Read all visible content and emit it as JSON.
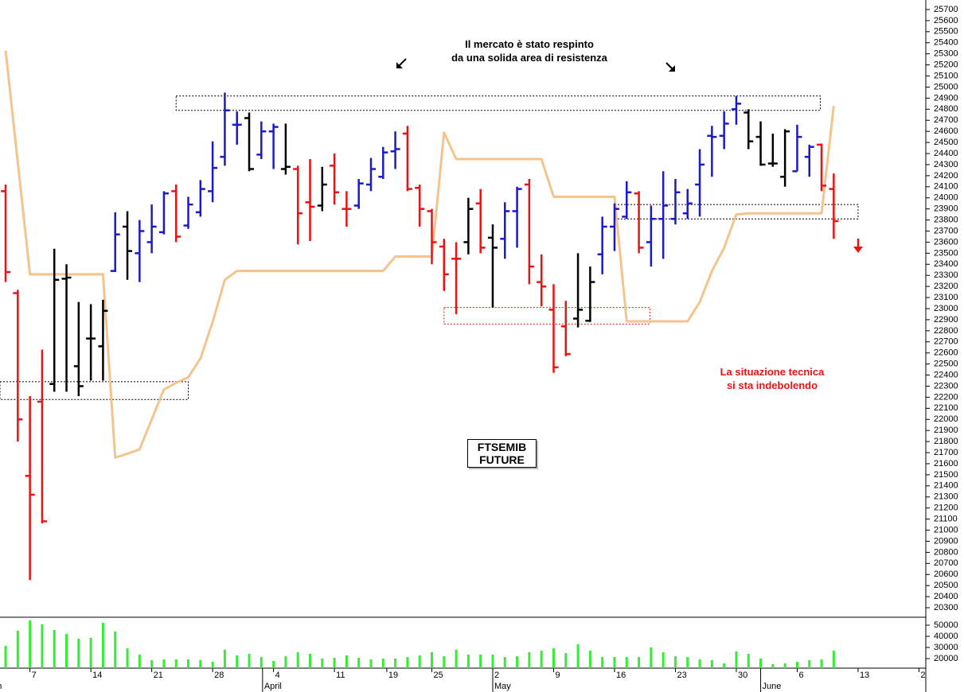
{
  "chart_data": {
    "type": "ohlc",
    "label_box": [
      "FTSEMIB",
      "FUTURE"
    ],
    "annotations": [
      {
        "lines": [
          "Il mercato è stato respinto",
          "da una solida area di resistenza"
        ],
        "color": "#000000"
      },
      {
        "lines": [
          "La situazione tecnica",
          "si sta indebolendo"
        ],
        "color": "#ee1111"
      }
    ],
    "xlim": [
      -0.46,
      75.56
    ],
    "ylim": [
      20214,
      25786
    ],
    "yticks": [
      20300,
      20400,
      20500,
      20600,
      20700,
      20800,
      20900,
      21000,
      21100,
      21200,
      21300,
      21400,
      21500,
      21600,
      21700,
      21800,
      21900,
      22000,
      22100,
      22200,
      22300,
      22400,
      22500,
      22600,
      22700,
      22800,
      22900,
      23000,
      23100,
      23200,
      23300,
      23400,
      23500,
      23600,
      23700,
      23800,
      23900,
      24000,
      24100,
      24200,
      24300,
      24400,
      24500,
      24600,
      24700,
      24800,
      24900,
      25000,
      25100,
      25200,
      25300,
      25400,
      25500,
      25600,
      25700
    ],
    "xticks": [
      {
        "value": 2,
        "label": "7"
      },
      {
        "value": 7,
        "label": "14"
      },
      {
        "value": 12,
        "label": "21"
      },
      {
        "value": 17,
        "label": "28"
      },
      {
        "value": 22,
        "label": "4"
      },
      {
        "value": 27,
        "label": "11"
      },
      {
        "value": 31.3,
        "label": "19"
      },
      {
        "value": 35,
        "label": "25"
      },
      {
        "value": 40,
        "label": "2"
      },
      {
        "value": 45,
        "label": "9"
      },
      {
        "value": 50,
        "label": "16"
      },
      {
        "value": 55,
        "label": "23"
      },
      {
        "value": 60,
        "label": "30"
      },
      {
        "value": 65,
        "label": "6"
      },
      {
        "value": 70,
        "label": "13"
      },
      {
        "value": 75,
        "label": "2"
      }
    ],
    "month_ticks": [
      {
        "value": -1.2,
        "label": "ch"
      },
      {
        "value": 21.1,
        "label": "April"
      },
      {
        "value": 40,
        "label": "May"
      },
      {
        "value": 62,
        "label": "June"
      }
    ],
    "ohlc": [
      [
        24060,
        24120,
        23240,
        23330
      ],
      [
        23140,
        23170,
        21800,
        22000
      ],
      [
        21490,
        22210,
        20550,
        21320
      ],
      [
        22160,
        22630,
        21060,
        21080
      ],
      [
        22320,
        23540,
        22250,
        23260
      ],
      [
        23270,
        23400,
        22250,
        23280
      ],
      [
        22480,
        23060,
        22210,
        22300
      ],
      [
        22730,
        23040,
        22350,
        22730
      ],
      [
        22660,
        23080,
        22350,
        22980
      ],
      [
        23340,
        23870,
        23330,
        23670
      ],
      [
        23740,
        23880,
        23260,
        23520
      ],
      [
        23500,
        23800,
        23240,
        23700
      ],
      [
        23600,
        23940,
        23500,
        23740
      ],
      [
        23690,
        24060,
        23670,
        24040
      ],
      [
        24060,
        24120,
        23600,
        23650
      ],
      [
        23750,
        24010,
        23720,
        23940
      ],
      [
        23870,
        24160,
        23830,
        24080
      ],
      [
        24060,
        24510,
        23960,
        24270
      ],
      [
        24370,
        24950,
        24290,
        24790
      ],
      [
        24660,
        24780,
        24480,
        24660
      ],
      [
        24720,
        24770,
        24240,
        24260
      ],
      [
        24390,
        24690,
        24350,
        24600
      ],
      [
        24600,
        24670,
        24260,
        24640
      ],
      [
        24260,
        24670,
        24210,
        24280
      ],
      [
        24260,
        24290,
        23580,
        23860
      ],
      [
        23960,
        24350,
        23610,
        23920
      ],
      [
        23930,
        24280,
        23880,
        24120
      ],
      [
        24290,
        24400,
        23940,
        24050
      ],
      [
        23900,
        24060,
        23740,
        23900
      ],
      [
        23930,
        24170,
        23900,
        24130
      ],
      [
        24120,
        24360,
        24060,
        24260
      ],
      [
        24190,
        24460,
        24170,
        24410
      ],
      [
        24420,
        24600,
        24260,
        24440
      ],
      [
        24580,
        24650,
        24060,
        24080
      ],
      [
        24090,
        24120,
        23740,
        23900
      ],
      [
        23880,
        23900,
        23400,
        23600
      ],
      [
        23560,
        23630,
        23160,
        23310
      ],
      [
        23450,
        23600,
        22950,
        23450
      ],
      [
        23600,
        24000,
        23490,
        23900
      ],
      [
        23950,
        24080,
        23500,
        23550
      ],
      [
        23640,
        23760,
        23010,
        23550
      ],
      [
        23630,
        23960,
        23450,
        23880
      ],
      [
        23880,
        24100,
        23550,
        24080
      ],
      [
        24120,
        24170,
        23220,
        23380
      ],
      [
        23240,
        23490,
        23020,
        23200
      ],
      [
        22990,
        23220,
        22420,
        22470
      ],
      [
        22840,
        23070,
        22570,
        22590
      ],
      [
        22910,
        23500,
        22830,
        22990
      ],
      [
        22890,
        23380,
        22880,
        23240
      ],
      [
        23490,
        23830,
        23310,
        23740
      ],
      [
        23740,
        23950,
        23520,
        23900
      ],
      [
        23830,
        24150,
        23810,
        24050
      ],
      [
        24040,
        24060,
        23500,
        23550
      ],
      [
        23600,
        23930,
        23380,
        23810
      ],
      [
        23810,
        24240,
        23450,
        23930
      ],
      [
        23810,
        24170,
        23760,
        24050
      ],
      [
        23860,
        24080,
        23810,
        23950
      ],
      [
        24120,
        24440,
        23830,
        24300
      ],
      [
        24560,
        24650,
        24190,
        24550
      ],
      [
        24560,
        24780,
        24440,
        24670
      ],
      [
        24800,
        24920,
        24660,
        24850
      ],
      [
        24770,
        24800,
        24440,
        24510
      ],
      [
        24550,
        24690,
        24290,
        24300
      ],
      [
        24310,
        24580,
        24280,
        24310
      ],
      [
        24190,
        24620,
        24100,
        24600
      ],
      [
        24240,
        24660,
        24240,
        24550
      ],
      [
        24370,
        24480,
        24190,
        24460
      ],
      [
        24480,
        24490,
        24060,
        24110
      ],
      [
        24080,
        24220,
        23630,
        23790
      ]
    ],
    "colors": [
      "#ee1111",
      "#ee1111",
      "#ee1111",
      "#ee1111",
      "#000000",
      "#000000",
      "#000000",
      "#000000",
      "#000000",
      "#1a1acc",
      "#000000",
      "#1a1acc",
      "#1a1acc",
      "#1a1acc",
      "#ee1111",
      "#1a1acc",
      "#1a1acc",
      "#1a1acc",
      "#1a1acc",
      "#1a1acc",
      "#000000",
      "#1a1acc",
      "#1a1acc",
      "#000000",
      "#ee1111",
      "#ee1111",
      "#000000",
      "#ee1111",
      "#ee1111",
      "#1a1acc",
      "#1a1acc",
      "#1a1acc",
      "#1a1acc",
      "#ee1111",
      "#ee1111",
      "#ee1111",
      "#ee1111",
      "#ee1111",
      "#000000",
      "#ee1111",
      "#000000",
      "#1a1acc",
      "#1a1acc",
      "#ee1111",
      "#ee1111",
      "#ee1111",
      "#ee1111",
      "#000000",
      "#000000",
      "#1a1acc",
      "#1a1acc",
      "#1a1acc",
      "#ee1111",
      "#1a1acc",
      "#1a1acc",
      "#1a1acc",
      "#1a1acc",
      "#1a1acc",
      "#1a1acc",
      "#1a1acc",
      "#1a1acc",
      "#000000",
      "#000000",
      "#000000",
      "#000000",
      "#1a1acc",
      "#1a1acc",
      "#ee1111",
      "#ee1111"
    ],
    "line": {
      "color": "#f5c48e",
      "values": [
        25330,
        24320,
        23310,
        23310,
        23310,
        23310,
        23310,
        23310,
        23310,
        21655,
        21690,
        21730,
        22000,
        22270,
        22330,
        22380,
        22550,
        22880,
        23260,
        23340,
        23340,
        23340,
        23340,
        23340,
        23340,
        23340,
        23340,
        23340,
        23340,
        23340,
        23340,
        23340,
        23470,
        23470,
        23470,
        23470,
        24590,
        24350,
        24350,
        24350,
        24350,
        24350,
        24350,
        24350,
        24350,
        24010,
        24010,
        24010,
        24010,
        24010,
        24010,
        22885,
        22885,
        22885,
        22885,
        22885,
        22885,
        23060,
        23340,
        23550,
        23850,
        23860,
        23860,
        23860,
        23860,
        23860,
        23860,
        23860,
        24830
      ]
    },
    "zones": [
      {
        "x": [
          14,
          66.9
        ],
        "y": [
          24790,
          24920
        ],
        "color": "#000000"
      },
      {
        "x": [
          -0.46,
          15
        ],
        "y": [
          22180,
          22340
        ],
        "color": "#000000"
      },
      {
        "x": [
          50,
          70
        ],
        "y": [
          23810,
          23940
        ],
        "color": "#000000"
      },
      {
        "x": [
          36,
          52.9
        ],
        "y": [
          22860,
          23010
        ],
        "color": "#ee1111"
      }
    ],
    "volume": {
      "color": "#33ee33",
      "ylim": [
        11430,
        57130
      ],
      "yticks": [
        20000,
        30000,
        40000,
        50000
      ],
      "values": [
        31400,
        45000,
        54300,
        50700,
        45700,
        42100,
        37900,
        38600,
        52100,
        44300,
        29300,
        23600,
        18600,
        19300,
        19300,
        19300,
        18600,
        17100,
        27900,
        22900,
        24300,
        21400,
        17900,
        22100,
        25700,
        24300,
        20000,
        20700,
        22900,
        20700,
        19300,
        20000,
        20000,
        21400,
        22900,
        25700,
        22100,
        27900,
        23600,
        23600,
        23600,
        21400,
        22100,
        25700,
        27100,
        29300,
        25000,
        32900,
        27100,
        21400,
        21400,
        21400,
        21400,
        30000,
        25700,
        22100,
        21400,
        19300,
        18600,
        15700,
        26400,
        24300,
        20000,
        15000,
        15700,
        17100,
        18600,
        19300,
        27100
      ]
    }
  }
}
